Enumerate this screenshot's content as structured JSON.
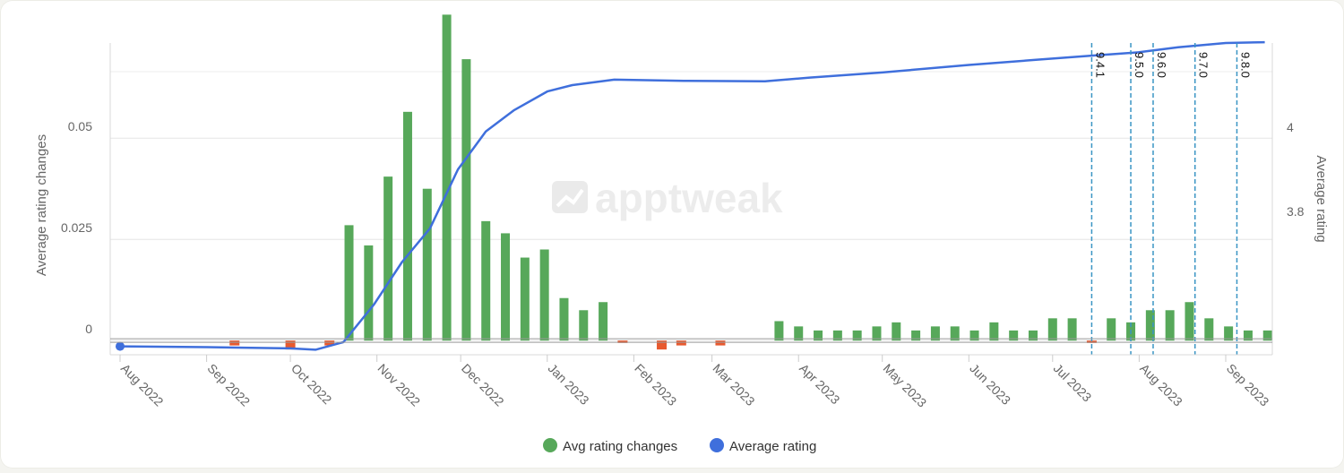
{
  "chart_data": {
    "type": "bar+line",
    "watermark": "apptweak",
    "categories": [
      "Aug 2022",
      "Sep 2022",
      "Oct 2022",
      "Nov 2022",
      "Dec 2022",
      "Jan 2023",
      "Feb 2023",
      "Mar 2023",
      "Apr 2023",
      "May 2023",
      "Jun 2023",
      "Jul 2023",
      "Aug 2023",
      "Sep 2023"
    ],
    "y_left": {
      "label": "Average rating changes",
      "ticks": [
        "0",
        "0.025",
        "0.05"
      ],
      "tick_values": [
        0,
        0.025,
        0.05
      ],
      "range": [
        -0.0035,
        0.0735
      ]
    },
    "y_right": {
      "label": "Average rating",
      "ticks": [
        "3.8",
        "4"
      ],
      "tick_values": [
        3.8,
        4.0
      ],
      "range": [
        3.46,
        4.2
      ]
    },
    "series": [
      {
        "name": "Avg rating changes",
        "kind": "bar",
        "color": "#57a85a",
        "negative_color": "#e8592e",
        "points": [
          {
            "x": "2022-09-11",
            "y": -0.0012
          },
          {
            "x": "2022-10-01",
            "y": -0.0022
          },
          {
            "x": "2022-10-15",
            "y": -0.0012
          },
          {
            "x": "2022-10-22",
            "y": 0.0285
          },
          {
            "x": "2022-10-29",
            "y": 0.0235
          },
          {
            "x": "2022-11-05",
            "y": 0.0405
          },
          {
            "x": "2022-11-12",
            "y": 0.0565
          },
          {
            "x": "2022-11-19",
            "y": 0.0375
          },
          {
            "x": "2022-11-26",
            "y": 0.0805
          },
          {
            "x": "2022-12-03",
            "y": 0.0695
          },
          {
            "x": "2022-12-10",
            "y": 0.0295
          },
          {
            "x": "2022-12-17",
            "y": 0.0265
          },
          {
            "x": "2022-12-24",
            "y": 0.0205
          },
          {
            "x": "2022-12-31",
            "y": 0.0225
          },
          {
            "x": "2023-01-07",
            "y": 0.0105
          },
          {
            "x": "2023-01-14",
            "y": 0.0075
          },
          {
            "x": "2023-01-21",
            "y": 0.0095
          },
          {
            "x": "2023-01-28",
            "y": -0.0006
          },
          {
            "x": "2023-02-11",
            "y": -0.0022
          },
          {
            "x": "2023-02-18",
            "y": -0.0012
          },
          {
            "x": "2023-03-04",
            "y": -0.0012
          },
          {
            "x": "2023-03-25",
            "y": 0.0048
          },
          {
            "x": "2023-04-01",
            "y": 0.0035
          },
          {
            "x": "2023-04-08",
            "y": 0.0025
          },
          {
            "x": "2023-04-15",
            "y": 0.0025
          },
          {
            "x": "2023-04-22",
            "y": 0.0025
          },
          {
            "x": "2023-04-29",
            "y": 0.0035
          },
          {
            "x": "2023-05-06",
            "y": 0.0045
          },
          {
            "x": "2023-05-13",
            "y": 0.0025
          },
          {
            "x": "2023-05-20",
            "y": 0.0035
          },
          {
            "x": "2023-05-27",
            "y": 0.0035
          },
          {
            "x": "2023-06-03",
            "y": 0.0025
          },
          {
            "x": "2023-06-10",
            "y": 0.0045
          },
          {
            "x": "2023-06-17",
            "y": 0.0025
          },
          {
            "x": "2023-06-24",
            "y": 0.0025
          },
          {
            "x": "2023-07-01",
            "y": 0.0055
          },
          {
            "x": "2023-07-08",
            "y": 0.0055
          },
          {
            "x": "2023-07-15",
            "y": -0.0006
          },
          {
            "x": "2023-07-22",
            "y": 0.0055
          },
          {
            "x": "2023-07-29",
            "y": 0.0045
          },
          {
            "x": "2023-08-05",
            "y": 0.0075
          },
          {
            "x": "2023-08-12",
            "y": 0.0075
          },
          {
            "x": "2023-08-19",
            "y": 0.0095
          },
          {
            "x": "2023-08-26",
            "y": 0.0055
          },
          {
            "x": "2023-09-02",
            "y": 0.0035
          },
          {
            "x": "2023-09-09",
            "y": 0.0025
          },
          {
            "x": "2023-09-16",
            "y": 0.0025
          }
        ]
      },
      {
        "name": "Average rating",
        "kind": "line",
        "color": "#3f6fdc",
        "points": [
          {
            "x": "2022-08-01",
            "y": 3.48
          },
          {
            "x": "2022-09-01",
            "y": 3.478
          },
          {
            "x": "2022-10-01",
            "y": 3.475
          },
          {
            "x": "2022-10-10",
            "y": 3.472
          },
          {
            "x": "2022-10-20",
            "y": 3.49
          },
          {
            "x": "2022-10-31",
            "y": 3.58
          },
          {
            "x": "2022-11-10",
            "y": 3.68
          },
          {
            "x": "2022-11-20",
            "y": 3.76
          },
          {
            "x": "2022-11-30",
            "y": 3.9
          },
          {
            "x": "2022-12-10",
            "y": 3.99
          },
          {
            "x": "2022-12-20",
            "y": 4.04
          },
          {
            "x": "2023-01-01",
            "y": 4.085
          },
          {
            "x": "2023-01-10",
            "y": 4.1
          },
          {
            "x": "2023-01-25",
            "y": 4.113
          },
          {
            "x": "2023-02-20",
            "y": 4.11
          },
          {
            "x": "2023-03-20",
            "y": 4.109
          },
          {
            "x": "2023-04-05",
            "y": 4.118
          },
          {
            "x": "2023-05-01",
            "y": 4.13
          },
          {
            "x": "2023-06-01",
            "y": 4.148
          },
          {
            "x": "2023-06-25",
            "y": 4.16
          },
          {
            "x": "2023-07-15",
            "y": 4.17
          },
          {
            "x": "2023-08-01",
            "y": 4.178
          },
          {
            "x": "2023-08-15",
            "y": 4.19
          },
          {
            "x": "2023-09-01",
            "y": 4.2
          },
          {
            "x": "2023-09-15",
            "y": 4.202
          }
        ]
      }
    ],
    "version_markers": [
      {
        "label": "9.4.1",
        "date": "2023-07-15"
      },
      {
        "label": "9.5.0",
        "date": "2023-07-29"
      },
      {
        "label": "9.6.0",
        "date": "2023-08-06"
      },
      {
        "label": "9.7.0",
        "date": "2023-08-21"
      },
      {
        "label": "9.8.0",
        "date": "2023-09-05"
      }
    ],
    "legend": {
      "position": "bottom-center",
      "items": [
        "Avg rating changes",
        "Average rating"
      ]
    },
    "grid": true
  }
}
